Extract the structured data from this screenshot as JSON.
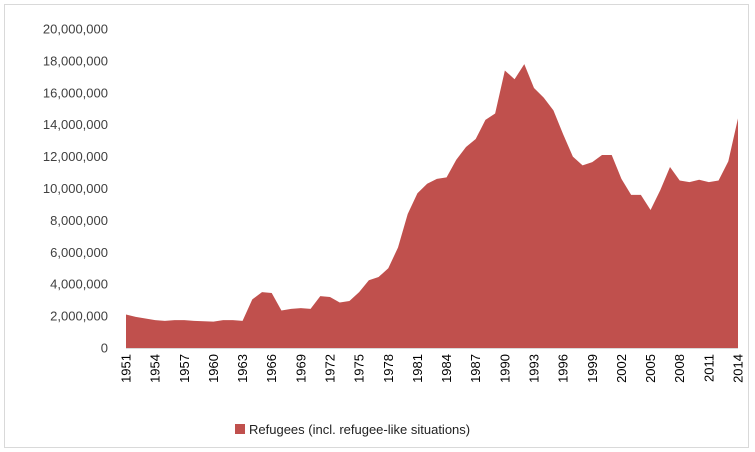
{
  "chart_data": {
    "type": "area",
    "title": "",
    "xlabel": "",
    "ylabel": "",
    "ylim": [
      0,
      20000000
    ],
    "yticks": [
      0,
      2000000,
      4000000,
      6000000,
      8000000,
      10000000,
      12000000,
      14000000,
      16000000,
      18000000,
      20000000
    ],
    "ytick_labels": [
      "0",
      "2,000,000",
      "4,000,000",
      "6,000,000",
      "8,000,000",
      "10,000,000",
      "12,000,000",
      "14,000,000",
      "16,000,000",
      "18,000,000",
      "20,000,000"
    ],
    "x_tick_labels": [
      "1951",
      "1954",
      "1957",
      "1960",
      "1963",
      "1966",
      "1969",
      "1972",
      "1975",
      "1978",
      "1981",
      "1984",
      "1987",
      "1990",
      "1993",
      "1996",
      "1999",
      "2002",
      "2005",
      "2008",
      "2011",
      "2014"
    ],
    "legend_position": "bottom",
    "grid": false,
    "color": "#c0504d",
    "series": [
      {
        "name": "Refugees (incl. refugee-like situations)",
        "x": [
          1951,
          1952,
          1953,
          1954,
          1955,
          1956,
          1957,
          1958,
          1959,
          1960,
          1961,
          1962,
          1963,
          1964,
          1965,
          1966,
          1967,
          1968,
          1969,
          1970,
          1971,
          1972,
          1973,
          1974,
          1975,
          1976,
          1977,
          1978,
          1979,
          1980,
          1981,
          1982,
          1983,
          1984,
          1985,
          1986,
          1987,
          1988,
          1989,
          1990,
          1991,
          1992,
          1993,
          1994,
          1995,
          1996,
          1997,
          1998,
          1999,
          2000,
          2001,
          2002,
          2003,
          2004,
          2005,
          2006,
          2007,
          2008,
          2009,
          2010,
          2011,
          2012,
          2013,
          2014
        ],
        "values": [
          2100000,
          1950000,
          1850000,
          1750000,
          1700000,
          1750000,
          1750000,
          1700000,
          1680000,
          1650000,
          1750000,
          1750000,
          1700000,
          3050000,
          3500000,
          3450000,
          2350000,
          2450000,
          2500000,
          2450000,
          3250000,
          3200000,
          2850000,
          2950000,
          3500000,
          4250000,
          4450000,
          5000000,
          6300000,
          8400000,
          9700000,
          10300000,
          10600000,
          10700000,
          11800000,
          12600000,
          13100000,
          14300000,
          14700000,
          17400000,
          16850000,
          17800000,
          16300000,
          15700000,
          14900000,
          13400000,
          12000000,
          11450000,
          11650000,
          12100000,
          12100000,
          10600000,
          9600000,
          9600000,
          8650000,
          9900000,
          11350000,
          10500000,
          10400000,
          10550000,
          10400000,
          10500000,
          11700000,
          14400000
        ]
      }
    ]
  }
}
